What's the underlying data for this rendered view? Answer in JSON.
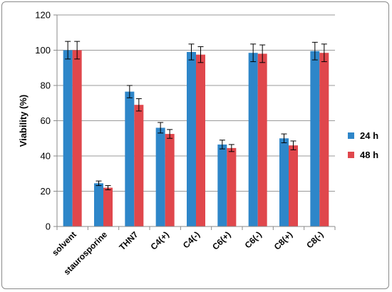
{
  "chart_data": {
    "type": "bar",
    "title": "",
    "xlabel": "",
    "ylabel": "Viability (%)",
    "ylim": [
      0,
      120
    ],
    "yticks": [
      0,
      20,
      40,
      60,
      80,
      100,
      120
    ],
    "ytick_labels": [
      "0",
      "20",
      "40",
      "60",
      "80",
      "100",
      "120"
    ],
    "grid": "horizontal",
    "legend_position": "right",
    "categories": [
      "solvent",
      "staurosporine",
      "THN7",
      "C4(+)",
      "C4(-)",
      "C6(+)",
      "C6(-)",
      "C8(+)",
      "C8(-)"
    ],
    "series": [
      {
        "name": "24 h",
        "color": "#2E86C9",
        "values": [
          100,
          24.5,
          76.5,
          56,
          99,
          46.5,
          98.5,
          50,
          99.5
        ],
        "errors": [
          5,
          1.3,
          3.5,
          3,
          4.5,
          2.5,
          5,
          2.5,
          5
        ]
      },
      {
        "name": "48 h",
        "color": "#E0474C",
        "values": [
          100,
          22,
          69,
          52.5,
          97.5,
          44.5,
          98,
          46,
          98.5
        ],
        "errors": [
          5,
          1.2,
          3.5,
          2.5,
          4.5,
          2,
          5,
          2.5,
          5
        ]
      }
    ]
  }
}
